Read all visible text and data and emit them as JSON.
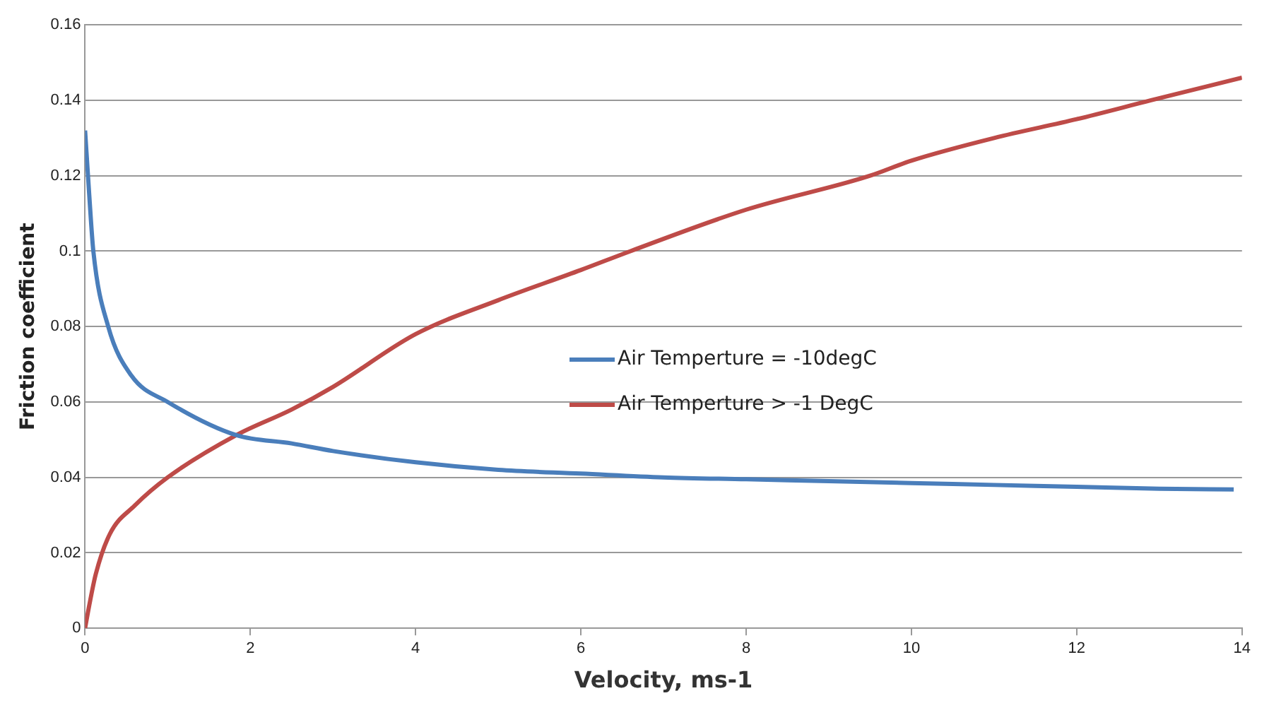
{
  "chart_data": {
    "type": "line",
    "xlabel": "Velocity, ms-1",
    "ylabel": "Friction coefficient",
    "xlim": [
      0,
      14
    ],
    "xticks": [
      0,
      2,
      4,
      6,
      8,
      10,
      12,
      14
    ],
    "ylim": [
      0,
      0.16
    ],
    "yticks": [
      0,
      0.02,
      0.04,
      0.06,
      0.08,
      0.1,
      0.12,
      0.14,
      0.16
    ],
    "grid": "y",
    "legend": "center",
    "marker": "none",
    "line_style": "solid",
    "series": [
      {
        "name": "Air Temperture = -10degC",
        "color": "#4a7ebb",
        "x": [
          0,
          0.05,
          0.1,
          0.28,
          0.56,
          1,
          1.83,
          2.5,
          3,
          4,
          5,
          6,
          7,
          8,
          9,
          10,
          11,
          12,
          13,
          13.9
        ],
        "values": [
          0.132,
          0.115,
          0.1,
          0.08,
          0.067,
          0.06,
          0.0512,
          0.049,
          0.047,
          0.044,
          0.042,
          0.041,
          0.04,
          0.0395,
          0.039,
          0.0385,
          0.038,
          0.0375,
          0.037,
          0.0368
        ]
      },
      {
        "name": "Air Temperture > -1 DegC",
        "color": "#be4b48",
        "x": [
          0,
          0.05,
          0.13,
          0.3,
          0.6,
          1,
          1.83,
          2.5,
          3,
          4,
          5,
          6,
          6.6,
          8,
          9.5,
          10,
          11,
          12,
          12.9,
          14
        ],
        "values": [
          0,
          0.006,
          0.0144,
          0.025,
          0.0325,
          0.04,
          0.0512,
          0.058,
          0.064,
          0.078,
          0.087,
          0.095,
          0.1,
          0.111,
          0.12,
          0.124,
          0.13,
          0.135,
          0.14,
          0.146
        ]
      }
    ]
  }
}
